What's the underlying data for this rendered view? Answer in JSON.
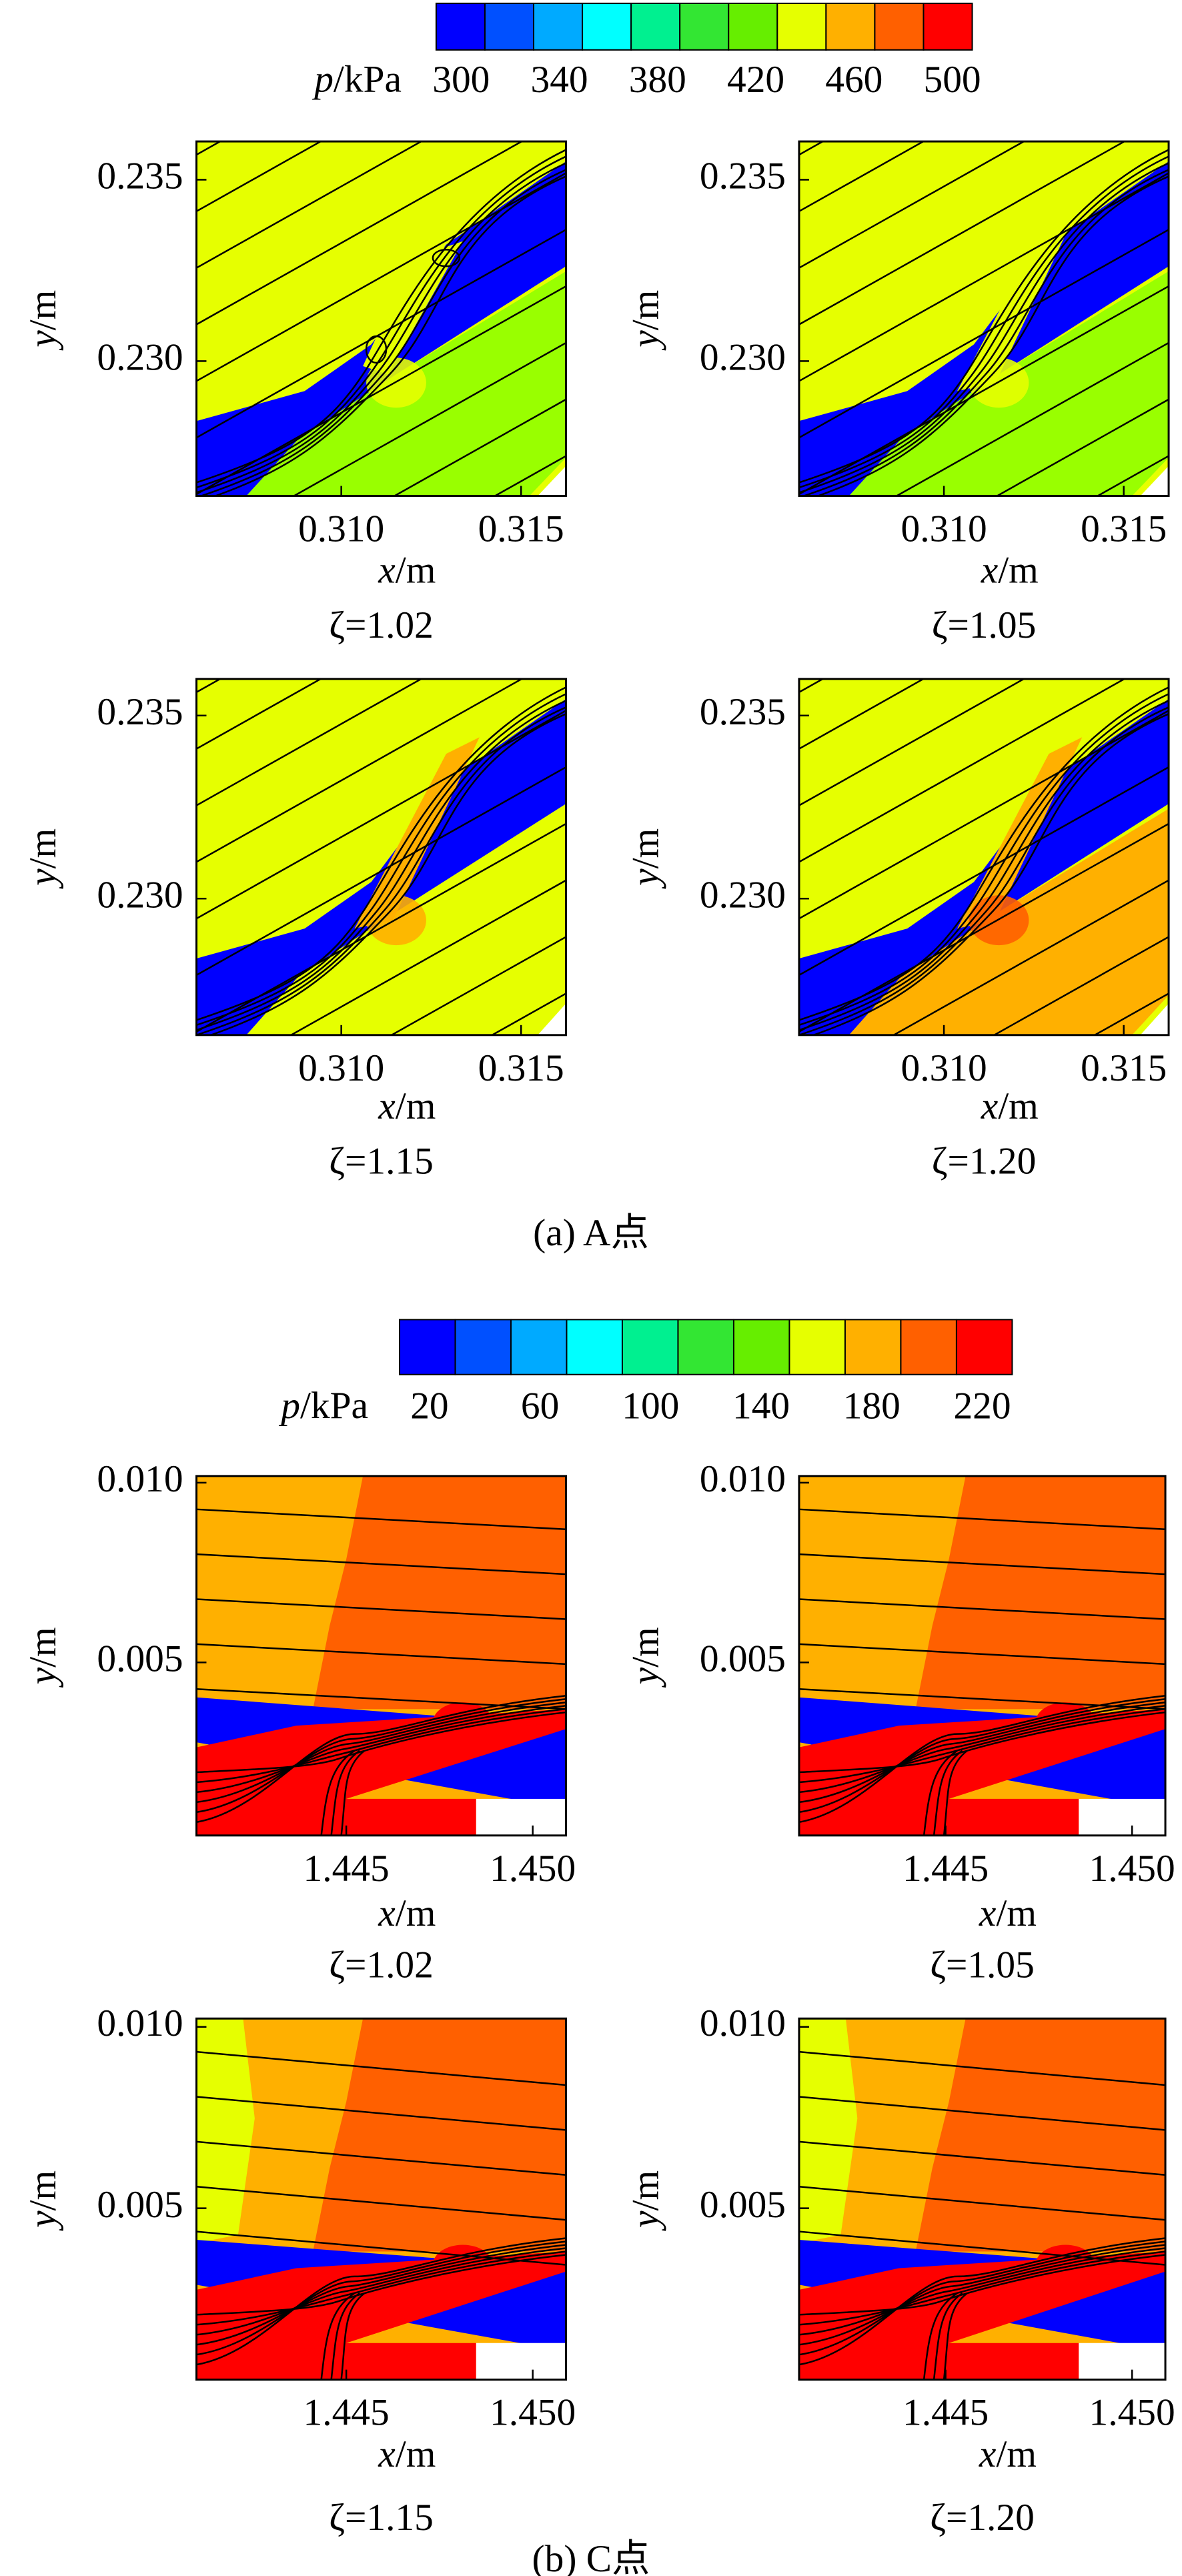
{
  "figures": [
    {
      "colorbar": {
        "var": "p",
        "unit": "/kPa",
        "ticks": [
          "300",
          "340",
          "380",
          "420",
          "460",
          "500"
        ],
        "colors": [
          "#0000ff",
          "#0050ff",
          "#00aaff",
          "#00ffff",
          "#00f090",
          "#33e633",
          "#66ee00",
          "#e6ff00",
          "#ffb000",
          "#ff6000",
          "#ff0000"
        ]
      },
      "panels": [
        {
          "ylabel": {
            "var": "y",
            "unit": "/m"
          },
          "xlabel": {
            "var": "x",
            "unit": "/m"
          },
          "yticks": [
            "0.235",
            "0.230"
          ],
          "xticks": [
            "0.310",
            "0.315"
          ],
          "caption": "ζ=1.02"
        },
        {
          "ylabel": {
            "var": "y",
            "unit": "/m"
          },
          "xlabel": {
            "var": "x",
            "unit": "/m"
          },
          "yticks": [
            "0.235",
            "0.230"
          ],
          "xticks": [
            "0.310",
            "0.315"
          ],
          "caption": "ζ=1.05"
        },
        {
          "ylabel": {
            "var": "y",
            "unit": "/m"
          },
          "xlabel": {
            "var": "x",
            "unit": "/m"
          },
          "yticks": [
            "0.235",
            "0.230"
          ],
          "xticks": [
            "0.310",
            "0.315"
          ],
          "caption": "ζ=1.15"
        },
        {
          "ylabel": {
            "var": "y",
            "unit": "/m"
          },
          "xlabel": {
            "var": "x",
            "unit": "/m"
          },
          "yticks": [
            "0.235",
            "0.230"
          ],
          "xticks": [
            "0.310",
            "0.315"
          ],
          "caption": "ζ=1.20"
        }
      ],
      "caption": "(a) A点"
    },
    {
      "colorbar": {
        "var": "p",
        "unit": "/kPa",
        "ticks": [
          "20",
          "60",
          "100",
          "140",
          "180",
          "220"
        ],
        "colors": [
          "#0000ff",
          "#0050ff",
          "#00aaff",
          "#00ffff",
          "#00f090",
          "#33e633",
          "#66ee00",
          "#e6ff00",
          "#ffb000",
          "#ff6000",
          "#ff0000"
        ]
      },
      "panels": [
        {
          "ylabel": {
            "var": "y",
            "unit": "/m"
          },
          "xlabel": {
            "var": "x",
            "unit": "/m"
          },
          "yticks": [
            "0.010",
            "0.005"
          ],
          "xticks": [
            "1.445",
            "1.450"
          ],
          "caption": "ζ=1.02"
        },
        {
          "ylabel": {
            "var": "y",
            "unit": "/m"
          },
          "xlabel": {
            "var": "x",
            "unit": "/m"
          },
          "yticks": [
            "0.010",
            "0.005"
          ],
          "xticks": [
            "1.445",
            "1.450"
          ],
          "caption": "ζ=1.05"
        },
        {
          "ylabel": {
            "var": "y",
            "unit": "/m"
          },
          "xlabel": {
            "var": "x",
            "unit": "/m"
          },
          "yticks": [
            "0.010",
            "0.005"
          ],
          "xticks": [
            "1.445",
            "1.450"
          ],
          "caption": "ζ=1.15"
        },
        {
          "ylabel": {
            "var": "y",
            "unit": "/m"
          },
          "xlabel": {
            "var": "x",
            "unit": "/m"
          },
          "yticks": [
            "0.010",
            "0.005"
          ],
          "xticks": [
            "1.445",
            "1.450"
          ],
          "caption": "ζ=1.20"
        }
      ],
      "caption": "(b) C点"
    }
  ]
}
